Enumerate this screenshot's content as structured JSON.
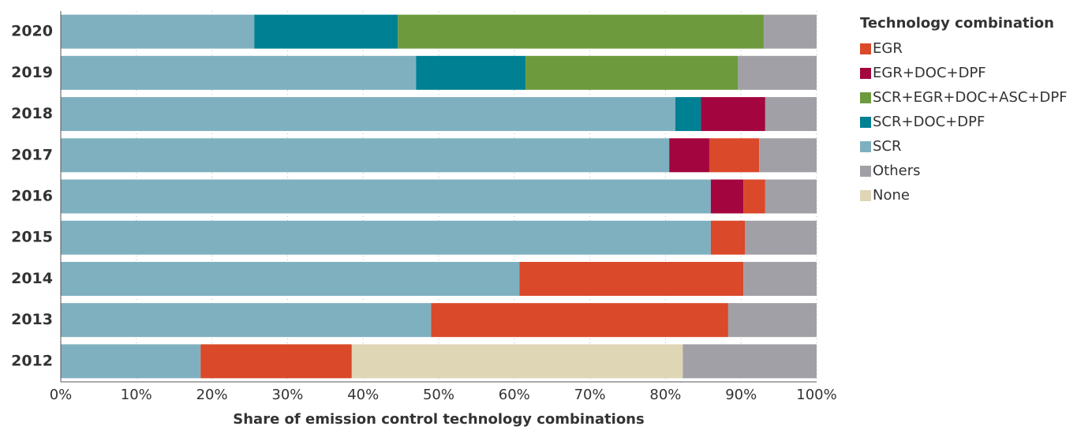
{
  "chart_data": {
    "type": "stacked-barh",
    "xlabel": "Share of emission control technology combinations",
    "legend_title": "Technology combination",
    "categories": [
      "2020",
      "2019",
      "2018",
      "2017",
      "2016",
      "2015",
      "2014",
      "2013",
      "2012"
    ],
    "series": [
      {
        "name": "EGR",
        "color": "#d9492a",
        "values": [
          0,
          0,
          0,
          6.6,
          2.9,
          4.5,
          29.6,
          39.3,
          20
        ]
      },
      {
        "name": "EGR+DOC+DPF",
        "color": "#a3063e",
        "values": [
          0,
          0,
          8.5,
          5.3,
          4.3,
          0,
          0,
          0,
          0
        ]
      },
      {
        "name": "SCR+EGR+DOC+ASC+DPF",
        "color": "#6e9a3e",
        "values": [
          48.4,
          28.1,
          0,
          0,
          0,
          0,
          0,
          0,
          0
        ]
      },
      {
        "name": "SCR+DOC+DPF",
        "color": "#008093",
        "values": [
          19,
          14.5,
          3.4,
          0,
          0,
          0,
          0,
          0,
          0
        ]
      },
      {
        "name": "SCR",
        "color": "#7fb0c0",
        "values": [
          25.6,
          47,
          81.3,
          80.5,
          86,
          86,
          60.7,
          49,
          18.5
        ]
      },
      {
        "name": "Others",
        "color": "#a0a0a6",
        "values": [
          7,
          10.4,
          6.8,
          7.6,
          6.8,
          9.5,
          9.7,
          11.7,
          17.7
        ]
      },
      {
        "name": "None",
        "color": "#ded6b5",
        "values": [
          0,
          0,
          0,
          0,
          0,
          0,
          0,
          0,
          43.8
        ]
      }
    ],
    "xlim": [
      0,
      100
    ],
    "xticks": [
      {
        "value": 0,
        "label": "0%"
      },
      {
        "value": 10,
        "label": "10%"
      },
      {
        "value": 20,
        "label": "20%"
      },
      {
        "value": 30,
        "label": "30%"
      },
      {
        "value": 40,
        "label": "40%"
      },
      {
        "value": 50,
        "label": "50%"
      },
      {
        "value": 60,
        "label": "60%"
      },
      {
        "value": 70,
        "label": "70%"
      },
      {
        "value": 80,
        "label": "80%"
      },
      {
        "value": 90,
        "label": "90%"
      },
      {
        "value": 100,
        "label": "100%"
      }
    ],
    "grid": true,
    "legend": "right"
  }
}
